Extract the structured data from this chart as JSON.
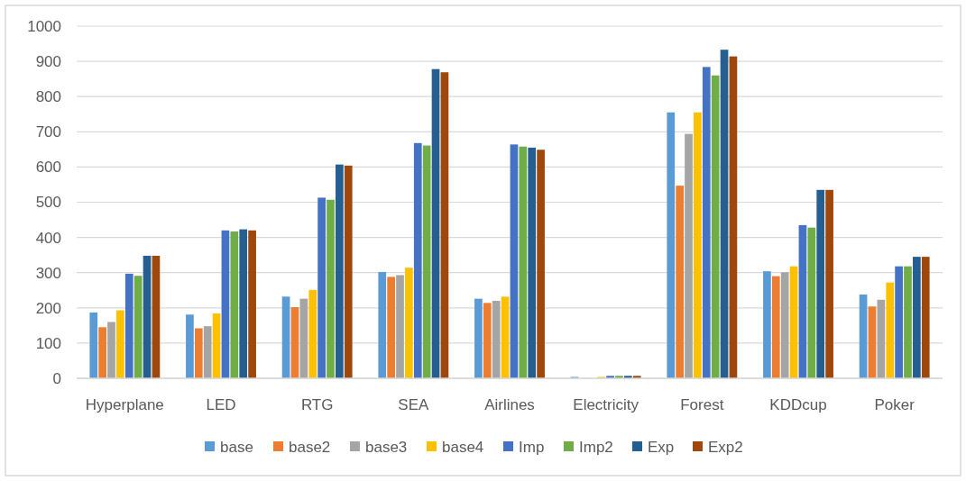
{
  "chart_data": {
    "type": "bar",
    "categories": [
      "Hyperplane",
      "LED",
      "RTG",
      "SEA",
      "Airlines",
      "Electricity",
      "Forest",
      "KDDcup",
      "Poker"
    ],
    "series": [
      {
        "name": "base",
        "color": "#5b9bd5",
        "values": [
          187,
          181,
          232,
          302,
          226,
          4,
          755,
          304,
          238
        ]
      },
      {
        "name": "base2",
        "color": "#ed7d31",
        "values": [
          145,
          142,
          202,
          288,
          214,
          null,
          547,
          290,
          204
        ]
      },
      {
        "name": "base3",
        "color": "#a5a5a5",
        "values": [
          160,
          148,
          226,
          293,
          220,
          null,
          694,
          301,
          223
        ]
      },
      {
        "name": "base4",
        "color": "#ffc000",
        "values": [
          193,
          184,
          251,
          314,
          232,
          4,
          755,
          318,
          272
        ]
      },
      {
        "name": "Imp",
        "color": "#4472c4",
        "values": [
          297,
          420,
          513,
          668,
          664,
          7,
          884,
          435,
          318
        ]
      },
      {
        "name": "Imp2",
        "color": "#70ad47",
        "values": [
          291,
          417,
          507,
          661,
          658,
          7,
          860,
          428,
          318
        ]
      },
      {
        "name": "Exp",
        "color": "#255e91",
        "values": [
          348,
          423,
          607,
          878,
          655,
          7,
          933,
          535,
          345
        ]
      },
      {
        "name": "Exp2",
        "color": "#9e480e",
        "values": [
          348,
          420,
          604,
          869,
          649,
          7,
          914,
          535,
          345
        ]
      }
    ],
    "ylim": [
      0,
      1000
    ],
    "yticks": [
      0,
      100,
      200,
      300,
      400,
      500,
      600,
      700,
      800,
      900,
      1000
    ],
    "grid": "y",
    "legend": "bottom"
  }
}
